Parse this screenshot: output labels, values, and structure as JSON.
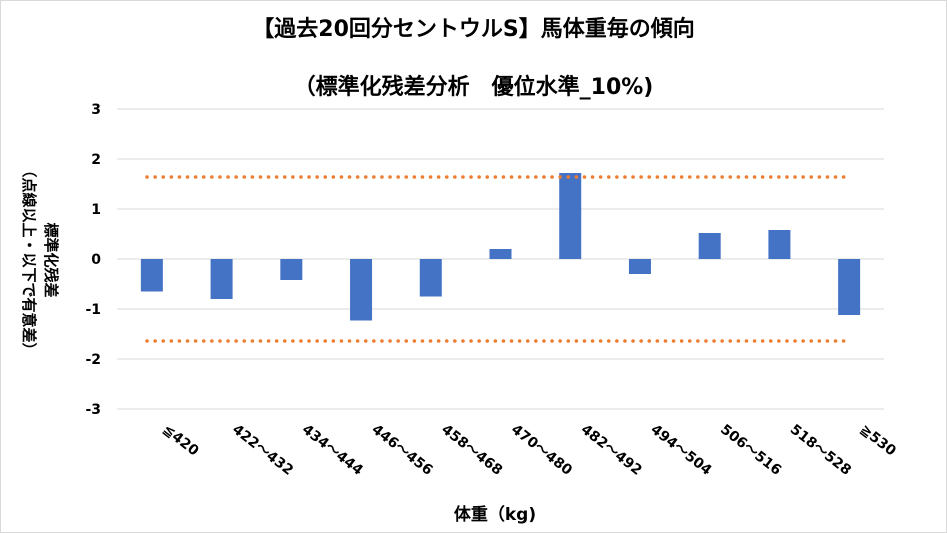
{
  "chart_data": {
    "type": "bar",
    "title": "【過去20回分セントウルS】馬体重毎の傾向",
    "subtitle": "（標準化残差分析　優位水準_10%)",
    "ylabel_line1": "標準化残差",
    "ylabel_line2": "（点線以上・以下で有意差）",
    "xlabel": "体重（kg)",
    "categories": [
      "≦420",
      "422～432",
      "434～444",
      "446～456",
      "458～468",
      "470～480",
      "482～492",
      "494～504",
      "506～516",
      "518～528",
      "≧530"
    ],
    "values": [
      -0.65,
      -0.8,
      -0.42,
      -1.23,
      -0.75,
      0.2,
      1.72,
      -0.3,
      0.52,
      0.58,
      -1.12
    ],
    "ylim": [
      -3,
      3
    ],
    "yticks": [
      "3",
      "2",
      "1",
      "0",
      "-1",
      "-2",
      "-3"
    ],
    "threshold_upper": 1.64,
    "threshold_lower": -1.64,
    "grid": true,
    "bar_color": "#4472c4",
    "threshold_color": "#ed7d31"
  }
}
